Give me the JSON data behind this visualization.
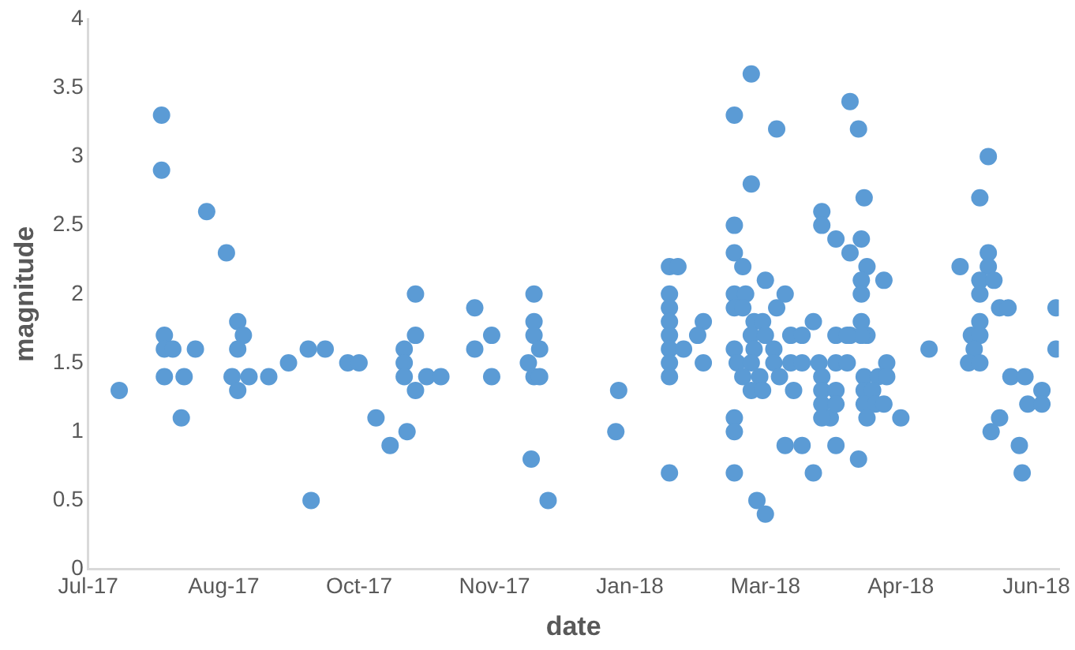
{
  "chart_data": {
    "type": "scatter",
    "xlabel": "date",
    "ylabel": "magnitude",
    "marker": "circle",
    "grid": false,
    "legend": false,
    "xlim": [
      "2017-07-04",
      "2018-06-13"
    ],
    "xticks": [
      {
        "value": "2017-07-04",
        "label": "Jul-17"
      },
      {
        "value": "2017-08-21",
        "label": "Aug-17"
      },
      {
        "value": "2017-10-08",
        "label": "Oct-17"
      },
      {
        "value": "2017-11-25",
        "label": "Nov-17"
      },
      {
        "value": "2018-01-12",
        "label": "Jan-18"
      },
      {
        "value": "2018-03-01",
        "label": "Mar-18"
      },
      {
        "value": "2018-04-18",
        "label": "Apr-18"
      },
      {
        "value": "2018-06-05",
        "label": "Jun-18"
      }
    ],
    "ylim": [
      0,
      4
    ],
    "yticks": [
      0,
      0.5,
      1,
      1.5,
      2,
      2.5,
      3,
      3.5,
      4
    ],
    "series": [
      {
        "color": "#5b9bd5",
        "x": [
          "2017-07-15",
          "2017-07-30",
          "2017-07-30",
          "2017-07-31",
          "2017-07-31",
          "2017-08-03",
          "2017-07-31",
          "2017-08-07",
          "2017-08-06",
          "2017-08-11",
          "2017-08-15",
          "2017-08-22",
          "2017-08-26",
          "2017-08-28",
          "2017-08-26",
          "2017-08-24",
          "2017-08-26",
          "2017-08-30",
          "2017-09-06",
          "2017-09-13",
          "2017-09-20",
          "2017-09-26",
          "2017-09-21",
          "2017-10-04",
          "2017-10-08",
          "2017-10-14",
          "2017-10-19",
          "2017-10-25",
          "2017-10-28",
          "2017-10-28",
          "2017-10-24",
          "2017-10-24",
          "2017-10-24",
          "2017-10-28",
          "2017-11-01",
          "2017-11-06",
          "2017-11-18",
          "2017-11-18",
          "2017-11-24",
          "2017-11-24",
          "2017-12-09",
          "2017-12-09",
          "2017-12-09",
          "2017-12-11",
          "2017-12-07",
          "2017-12-09",
          "2017-12-11",
          "2017-12-08",
          "2017-12-14",
          "2018-01-08",
          "2018-01-07",
          "2018-01-26",
          "2018-01-29",
          "2018-01-26",
          "2018-01-26",
          "2018-01-26",
          "2018-01-26",
          "2018-01-26",
          "2018-01-31",
          "2018-01-26",
          "2018-01-26",
          "2018-01-26",
          "2018-02-07",
          "2018-02-05",
          "2018-02-07",
          "2018-02-24",
          "2018-02-18",
          "2018-03-05",
          "2018-02-24",
          "2018-02-18",
          "2018-02-18",
          "2018-02-21",
          "2018-03-01",
          "2018-02-18",
          "2018-02-22",
          "2018-02-18",
          "2018-02-21",
          "2018-03-08",
          "2018-03-05",
          "2018-02-25",
          "2018-02-28",
          "2018-02-24",
          "2018-03-01",
          "2018-02-18",
          "2018-02-25",
          "2018-03-04",
          "2018-02-19",
          "2018-02-24",
          "2018-03-04",
          "2018-03-10",
          "2018-03-14",
          "2018-03-20",
          "2018-02-21",
          "2018-02-27",
          "2018-03-06",
          "2018-02-24",
          "2018-02-28",
          "2018-03-11",
          "2018-03-10",
          "2018-03-14",
          "2018-03-18",
          "2018-03-21",
          "2018-03-21",
          "2018-03-26",
          "2018-03-31",
          "2018-04-05",
          "2018-04-04",
          "2018-03-26",
          "2018-03-31",
          "2018-04-04",
          "2018-03-21",
          "2018-03-26",
          "2018-03-21",
          "2018-03-26",
          "2018-03-21",
          "2018-03-24",
          "2018-03-26",
          "2018-03-21",
          "2018-02-18",
          "2018-02-18",
          "2018-03-08",
          "2018-03-14",
          "2018-03-26",
          "2018-02-18",
          "2018-03-18",
          "2018-04-03",
          "2018-02-26",
          "2018-03-01",
          "2018-03-31",
          "2018-04-03",
          "2018-04-06",
          "2018-04-04",
          "2018-04-04",
          "2018-04-12",
          "2018-04-06",
          "2018-04-04",
          "2018-03-30",
          "2018-03-30",
          "2018-04-05",
          "2018-04-10",
          "2018-04-13",
          "2018-04-05",
          "2018-04-08",
          "2018-04-13",
          "2018-04-05",
          "2018-04-09",
          "2018-04-12",
          "2018-04-06",
          "2018-04-18",
          "2018-04-28",
          "2018-05-09",
          "2018-05-19",
          "2018-05-16",
          "2018-05-19",
          "2018-05-19",
          "2018-05-16",
          "2018-05-21",
          "2018-05-16",
          "2018-05-23",
          "2018-05-26",
          "2018-05-16",
          "2018-05-13",
          "2018-05-16",
          "2018-05-14",
          "2018-05-12",
          "2018-05-16",
          "2018-05-27",
          "2018-06-01",
          "2018-06-07",
          "2018-06-02",
          "2018-06-07",
          "2018-05-23",
          "2018-05-20",
          "2018-05-30",
          "2018-05-31",
          "2018-06-12",
          "2018-06-12"
        ],
        "values": [
          1.3,
          3.3,
          2.9,
          1.7,
          1.6,
          1.6,
          1.4,
          1.4,
          1.1,
          1.6,
          2.6,
          2.3,
          1.8,
          1.7,
          1.6,
          1.4,
          1.3,
          1.4,
          1.4,
          1.5,
          1.6,
          1.6,
          0.5,
          1.5,
          1.5,
          1.1,
          0.9,
          1.0,
          2.0,
          1.7,
          1.6,
          1.5,
          1.4,
          1.3,
          1.4,
          1.4,
          1.9,
          1.6,
          1.7,
          1.4,
          2.0,
          1.8,
          1.7,
          1.6,
          1.5,
          1.4,
          1.4,
          0.8,
          0.5,
          1.3,
          1.0,
          2.2,
          2.2,
          2.0,
          1.9,
          1.8,
          1.7,
          1.6,
          1.6,
          1.5,
          1.4,
          0.7,
          1.8,
          1.7,
          1.5,
          3.6,
          3.3,
          3.2,
          2.8,
          2.5,
          2.3,
          2.2,
          2.1,
          2.0,
          2.0,
          1.9,
          1.9,
          2.0,
          1.9,
          1.8,
          1.8,
          1.7,
          1.7,
          1.6,
          1.6,
          1.6,
          1.5,
          1.5,
          1.5,
          1.5,
          1.5,
          1.5,
          1.4,
          1.4,
          1.4,
          1.3,
          1.3,
          1.3,
          1.7,
          1.7,
          1.8,
          2.6,
          2.5,
          2.4,
          2.3,
          2.7,
          2.4,
          1.7,
          1.7,
          1.8,
          1.4,
          1.5,
          1.3,
          1.3,
          1.2,
          1.1,
          1.2,
          1.1,
          1.1,
          1.0,
          0.9,
          0.9,
          0.9,
          0.7,
          0.7,
          0.8,
          0.5,
          0.4,
          3.4,
          3.2,
          2.2,
          2.1,
          2.0,
          2.1,
          1.7,
          1.7,
          1.7,
          1.5,
          1.4,
          1.4,
          1.5,
          1.3,
          1.3,
          1.4,
          1.2,
          1.2,
          1.2,
          1.1,
          1.1,
          1.6,
          2.2,
          3.0,
          2.7,
          2.3,
          2.2,
          2.1,
          2.1,
          2.0,
          1.9,
          1.9,
          1.8,
          1.7,
          1.7,
          1.6,
          1.5,
          1.5,
          1.4,
          1.4,
          1.3,
          1.2,
          1.2,
          1.1,
          1.0,
          0.9,
          0.7,
          1.9,
          1.6
        ]
      }
    ]
  }
}
